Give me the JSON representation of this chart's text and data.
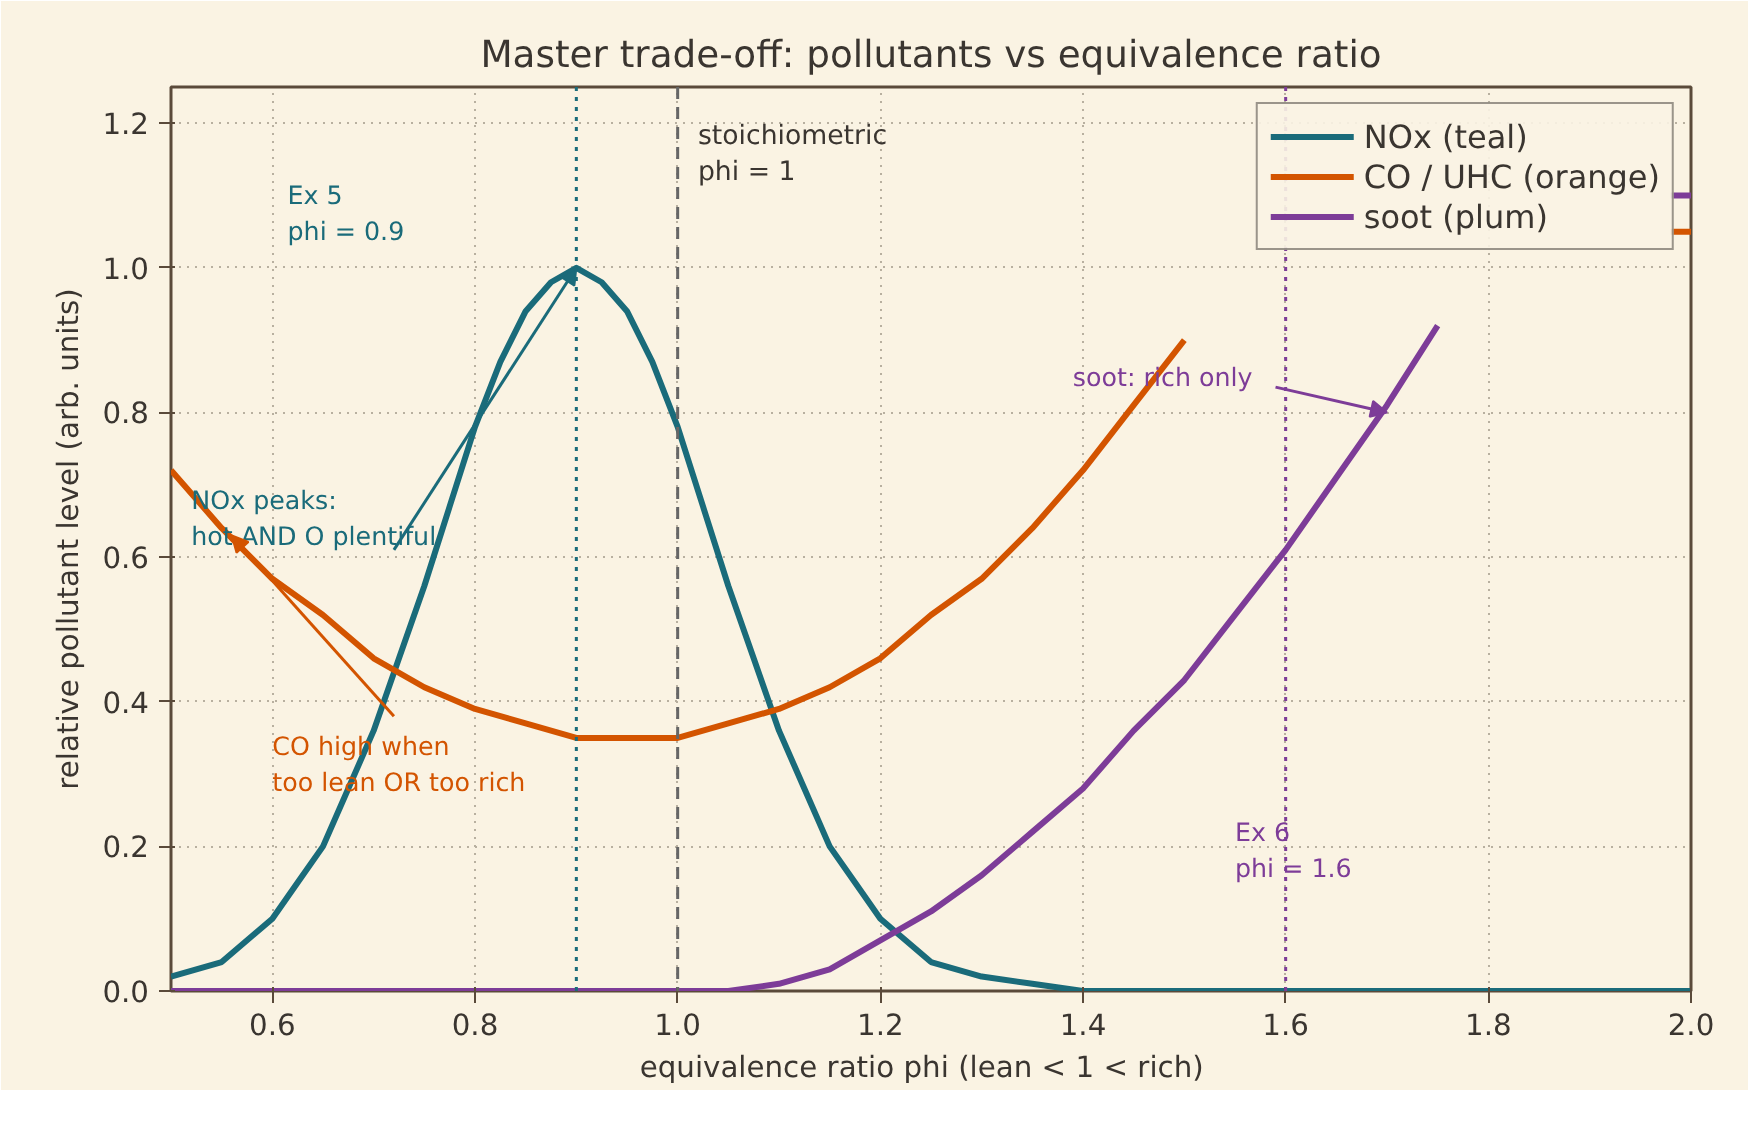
{
  "chart_data": {
    "type": "line",
    "title": "Master trade-off: pollutants vs equivalence ratio",
    "xlabel": "equivalence ratio  phi  (lean < 1 < rich)",
    "ylabel": "relative pollutant level (arb. units)",
    "series": [
      {
        "name": "NOx (teal)",
        "color": "#1a6b7a",
        "x": [
          0.5,
          0.55,
          0.6,
          0.625,
          0.65,
          0.675,
          0.7,
          0.725,
          0.75,
          0.775,
          0.8,
          0.825,
          0.85,
          0.875,
          0.9,
          0.925,
          0.95,
          0.975,
          1.0,
          1.025,
          1.05,
          1.075,
          1.1,
          1.125,
          1.15,
          1.175,
          1.2,
          1.25,
          1.3,
          1.35,
          1.4,
          1.5,
          1.6,
          1.8,
          2.0
        ],
        "values": [
          0.02,
          0.04,
          0.1,
          0.15,
          0.2,
          0.28,
          0.36,
          0.46,
          0.56,
          0.67,
          0.78,
          0.87,
          0.94,
          0.98,
          1.0,
          0.98,
          0.94,
          0.87,
          0.78,
          0.67,
          0.56,
          0.46,
          0.36,
          0.28,
          0.2,
          0.15,
          0.1,
          0.04,
          0.02,
          0.01,
          0,
          0,
          0,
          0,
          0
        ]
      },
      {
        "name": "CO / UHC (orange)",
        "color": "#d35400",
        "x": [
          0.5,
          0.55,
          0.6,
          0.65,
          0.7,
          0.75,
          0.8,
          0.85,
          0.9,
          0.95,
          1.0,
          1.05,
          1.1,
          1.15,
          1.2,
          1.25,
          1.3,
          1.35,
          1.4,
          1.45,
          1.5,
          1.55,
          1.98,
          2.0
        ],
        "values": [
          0.72,
          0.64,
          0.57,
          0.52,
          0.46,
          0.42,
          0.39,
          0.37,
          0.35,
          0.35,
          0.35,
          0.37,
          0.39,
          0.42,
          0.46,
          0.52,
          0.57,
          0.64,
          0.72,
          0.81,
          0.9,
          null,
          1.05,
          1.05
        ]
      },
      {
        "name": "soot (plum)",
        "color": "#7d3c98",
        "x": [
          0.5,
          1.05,
          1.1,
          1.15,
          1.2,
          1.25,
          1.3,
          1.35,
          1.4,
          1.45,
          1.5,
          1.55,
          1.6,
          1.65,
          1.7,
          1.75,
          1.8,
          1.98,
          2.0
        ],
        "values": [
          0,
          0,
          0.01,
          0.03,
          0.07,
          0.11,
          0.16,
          0.22,
          0.28,
          0.36,
          0.43,
          0.52,
          0.61,
          0.71,
          0.81,
          0.92,
          null,
          1.1,
          1.1
        ]
      }
    ],
    "xlim": [
      0.5,
      2.0
    ],
    "ylim": [
      0,
      1.25
    ],
    "xticks": [
      {
        "value": 0.6,
        "label": "0.6"
      },
      {
        "value": 0.8,
        "label": "0.8"
      },
      {
        "value": 1.0,
        "label": "1.0"
      },
      {
        "value": 1.2,
        "label": "1.2"
      },
      {
        "value": 1.4,
        "label": "1.4"
      },
      {
        "value": 1.6,
        "label": "1.6"
      },
      {
        "value": 1.8,
        "label": "1.8"
      },
      {
        "value": 2.0,
        "label": "2.0"
      }
    ],
    "yticks": [
      {
        "value": 0,
        "label": "0.0"
      },
      0.2,
      0.4,
      0.6,
      0.8,
      {
        "value": 1.0,
        "label": "1.0"
      },
      1.2
    ],
    "ref_lines": [
      {
        "axis": "x",
        "value": 0.9,
        "label": "Ex 5\nphi = 0.9",
        "color": "#1a6b7a",
        "line_style": "dotted"
      },
      {
        "axis": "x",
        "value": 1.0,
        "label": "stoichiometric\nphi = 1",
        "color": "#666666",
        "line_style": "dashed"
      },
      {
        "axis": "x",
        "value": 1.6,
        "label": "Ex 6\nphi = 1.6",
        "color": "#7d3c98",
        "line_style": "dotted"
      }
    ],
    "annotations": [
      {
        "text": "NOx peaks:\nhot AND O plentiful",
        "x": 0.9,
        "y": 1.0
      },
      {
        "text": "CO high when\ntoo lean OR too rich",
        "x": 0.56,
        "y": 0.63
      },
      {
        "text": "soot: rich only",
        "x": 1.7,
        "y": 0.8
      }
    ],
    "grid": true,
    "legend": "top right",
    "line_style": "solid",
    "marker": "none"
  }
}
